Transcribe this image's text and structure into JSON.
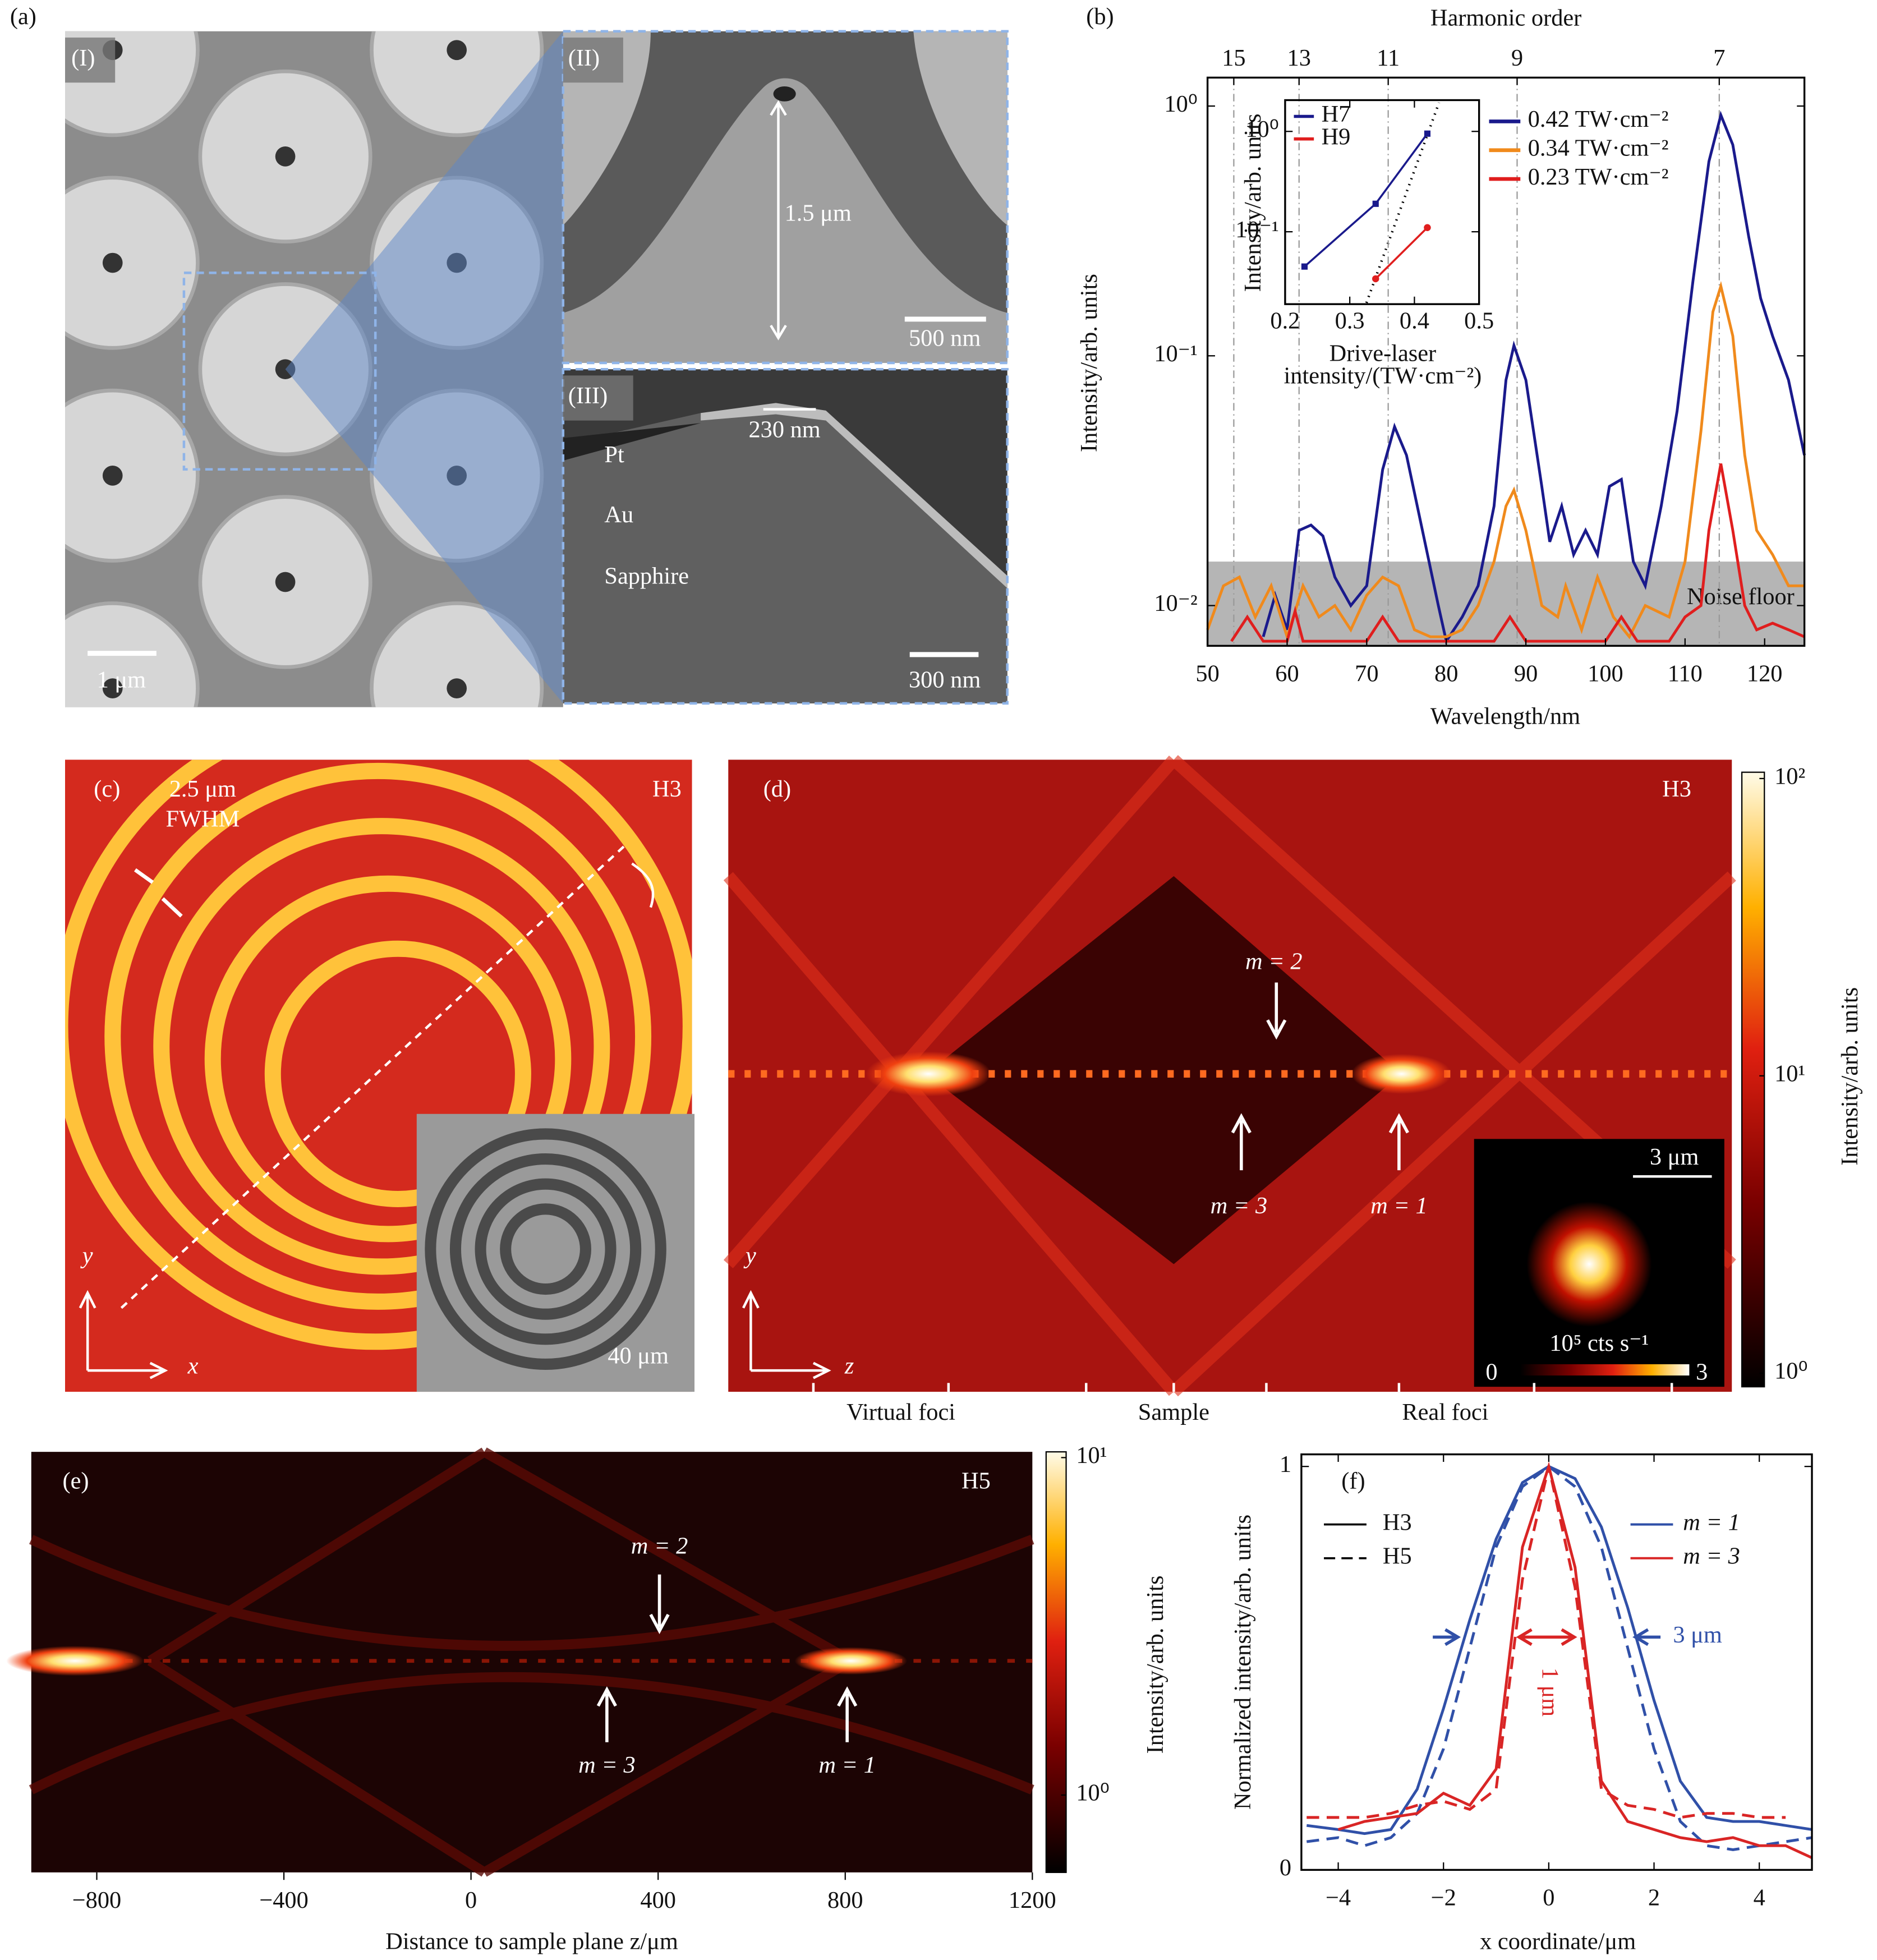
{
  "panels": {
    "a": {
      "label": "(a)",
      "sub1": "(I)",
      "sub2": "(II)",
      "sub3": "(III)",
      "height": "1.5 μm",
      "scale2": "500 nm",
      "tip": "230 nm",
      "pt": "Pt",
      "au": "Au",
      "sapphire": "Sapphire",
      "scale3": "300 nm",
      "scale1": "1 μm"
    },
    "c": {
      "label": "(c)",
      "fwhm_value": "2.5 μm",
      "fwhm": "FWHM",
      "harmonic": "H3",
      "y": "y",
      "x": "x",
      "inset_scale": "40 μm"
    },
    "d": {
      "label": "(d)",
      "harmonic": "H3",
      "m2": "m = 2",
      "m3": "m = 3",
      "m1": "m = 1",
      "y": "y",
      "z": "z",
      "inset_scale": "3 μm",
      "inset_unit": "10⁵ cts s⁻¹",
      "inset_min": "0",
      "inset_max": "3",
      "colorbar": {
        "label": "Intensity/arb. units",
        "ylim": [
          0.9,
          105
        ],
        "yticks": [
          {
            "value": 1,
            "label": "10⁰"
          },
          {
            "value": 10,
            "label": "10¹"
          },
          {
            "value": 100,
            "label": "10²"
          }
        ]
      },
      "bottom": [
        "Virtual foci",
        "Sample",
        "Real foci"
      ]
    }
  },
  "chart_data": [
    {
      "type": "line",
      "panel_label": "(b)",
      "x_label": "Wavelength/nm",
      "y_label": "Intensity/arb. units",
      "xlim": [
        50,
        125
      ],
      "xticks": [
        50,
        60,
        70,
        80,
        90,
        100,
        110,
        120
      ],
      "ylim": [
        0.0069,
        1.3
      ],
      "ylog": true,
      "yticks": [
        {
          "value": 0.01,
          "label": "10⁻²"
        },
        {
          "value": 0.1,
          "label": "10⁻¹"
        },
        {
          "value": 1,
          "label": "10⁰"
        }
      ],
      "top_axis": {
        "label": "Harmonic order",
        "ticks": [
          {
            "value": 53.3,
            "label": "15"
          },
          {
            "value": 61.5,
            "label": "13"
          },
          {
            "value": 72.7,
            "label": "11"
          },
          {
            "value": 88.9,
            "label": "9"
          },
          {
            "value": 114.3,
            "label": "7"
          }
        ]
      },
      "noise_floor": 0.015,
      "noise_label": "Noise floor",
      "series": [
        {
          "name": "0.42 TW·cm⁻²",
          "color": "#1a1a8c",
          "x": [
            57,
            58.5,
            60,
            61.5,
            63,
            64.5,
            66,
            68,
            70,
            72,
            73.5,
            75,
            77,
            79,
            80,
            82,
            84,
            86,
            87.5,
            88.5,
            90,
            92,
            93,
            94.5,
            96,
            97.5,
            99,
            100.5,
            102,
            103.5,
            105,
            107,
            109,
            111,
            113,
            114.5,
            116,
            118,
            119.5,
            121,
            123,
            125
          ],
          "values": [
            0.0075,
            0.011,
            0.008,
            0.02,
            0.021,
            0.019,
            0.013,
            0.01,
            0.012,
            0.035,
            0.052,
            0.04,
            0.02,
            0.01,
            0.0072,
            0.009,
            0.012,
            0.025,
            0.08,
            0.11,
            0.08,
            0.03,
            0.018,
            0.025,
            0.016,
            0.02,
            0.016,
            0.03,
            0.032,
            0.015,
            0.012,
            0.025,
            0.06,
            0.2,
            0.6,
            0.92,
            0.7,
            0.3,
            0.17,
            0.12,
            0.08,
            0.04
          ]
        },
        {
          "name": "0.34 TW·cm⁻²",
          "color": "#f08a1c",
          "x": [
            50,
            52,
            54,
            56,
            58,
            60,
            62,
            64,
            66,
            68,
            70,
            72,
            74,
            76,
            78,
            80,
            82,
            84,
            86,
            87.5,
            88.5,
            90,
            92,
            94,
            95,
            97,
            99,
            101,
            103,
            105,
            108,
            110,
            112,
            113.5,
            114.5,
            116,
            117.5,
            119,
            121,
            123,
            125
          ],
          "values": [
            0.008,
            0.012,
            0.013,
            0.009,
            0.012,
            0.0075,
            0.012,
            0.009,
            0.01,
            0.008,
            0.011,
            0.013,
            0.012,
            0.008,
            0.0075,
            0.0075,
            0.008,
            0.01,
            0.015,
            0.025,
            0.029,
            0.02,
            0.01,
            0.009,
            0.012,
            0.008,
            0.013,
            0.009,
            0.0075,
            0.01,
            0.009,
            0.015,
            0.05,
            0.15,
            0.19,
            0.12,
            0.04,
            0.02,
            0.016,
            0.012,
            0.012
          ]
        },
        {
          "name": "0.23 TW·cm⁻²",
          "color": "#e01e1e",
          "x": [
            53,
            55,
            57,
            60,
            61,
            62,
            66,
            70,
            72,
            74,
            78,
            86,
            88,
            90,
            100,
            102,
            104,
            108,
            110,
            112,
            113,
            114.5,
            116,
            117.5,
            119,
            121,
            123,
            125
          ],
          "values": [
            0.0072,
            0.009,
            0.0072,
            0.0072,
            0.0095,
            0.0072,
            0.0072,
            0.0072,
            0.009,
            0.0072,
            0.0072,
            0.0072,
            0.009,
            0.0072,
            0.0072,
            0.009,
            0.0072,
            0.0072,
            0.009,
            0.01,
            0.02,
            0.037,
            0.02,
            0.01,
            0.008,
            0.0085,
            0.008,
            0.0075
          ]
        }
      ]
    },
    {
      "type": "line",
      "x_label": [
        "Drive-laser",
        "intensity/(TW·cm⁻²)"
      ],
      "y_label": "Intensity/arb. units",
      "xlim": [
        0.2,
        0.5
      ],
      "xticks": [
        0.2,
        0.3,
        0.4,
        0.5
      ],
      "ylim": [
        0.019,
        2.05
      ],
      "ylog": true,
      "yticks": [
        {
          "value": 0.1,
          "label": "10⁻¹"
        },
        {
          "value": 1,
          "label": "10⁰"
        }
      ],
      "series": [
        {
          "name": "H7",
          "color": "#1a1a8c",
          "marker": "square",
          "x": [
            0.23,
            0.34,
            0.42
          ],
          "values": [
            0.045,
            0.19,
            0.95
          ]
        },
        {
          "name": "H9",
          "color": "#e01e1e",
          "marker": "circle",
          "x": [
            0.34,
            0.42
          ],
          "values": [
            0.034,
            0.11
          ]
        }
      ]
    },
    {
      "type": "heatmap",
      "panel_label": "(e)",
      "harmonic": "H5",
      "x_label": "Distance to sample plane z/μm",
      "xlim": [
        -940,
        1200
      ],
      "xticks": [
        {
          "value": -800,
          "label": "−800"
        },
        {
          "value": -400,
          "label": "−400"
        },
        0,
        400,
        800,
        1200
      ],
      "annotations": [
        "m = 2",
        "m = 3",
        "m = 1"
      ],
      "colorbar": {
        "label": "Intensity/arb. units",
        "ylim": [
          0.59,
          10.4
        ],
        "yticks": [
          {
            "value": 1,
            "label": "10⁰"
          },
          {
            "value": 10,
            "label": "10¹"
          }
        ]
      }
    },
    {
      "type": "line",
      "panel_label": "(f)",
      "x_label": "x coordinate/μm",
      "y_label": "Normalized intensity/arb. units",
      "xlim": [
        -4.7,
        5
      ],
      "xticks": [
        {
          "value": -4,
          "label": "−4"
        },
        {
          "value": -2,
          "label": "−2"
        },
        0,
        2,
        4
      ],
      "ylim": [
        0,
        1.03
      ],
      "yticks": [
        0,
        1
      ],
      "x": [
        -4.6,
        -4,
        -3.5,
        -3,
        -2.5,
        -2,
        -1.5,
        -1,
        -0.5,
        0,
        0.5,
        1,
        1.5,
        2,
        2.5,
        3,
        3.5,
        4,
        4.5,
        5
      ],
      "legend_styles": [
        {
          "label": "H3",
          "dash": false
        },
        {
          "label": "H5",
          "dash": true
        }
      ],
      "legend_colors": [
        {
          "label": "m = 1",
          "color": "#3050a8"
        },
        {
          "label": "m = 3",
          "color": "#d92525"
        }
      ],
      "annotations": [
        "3 μm",
        "1 μm"
      ],
      "series": [
        {
          "color": "#3050a8",
          "dash": false,
          "values": [
            0.11,
            0.1,
            0.09,
            0.1,
            0.2,
            0.4,
            0.62,
            0.82,
            0.96,
            1,
            0.97,
            0.85,
            0.65,
            0.42,
            0.22,
            0.13,
            0.12,
            0.12,
            0.11,
            0.1
          ]
        },
        {
          "color": "#3050a8",
          "dash": true,
          "values": [
            0.07,
            0.08,
            0.06,
            0.08,
            0.14,
            0.3,
            0.55,
            0.8,
            0.95,
            1,
            0.95,
            0.8,
            0.55,
            0.3,
            0.12,
            0.06,
            0.05,
            0.06,
            0.07,
            0.08
          ]
        },
        {
          "color": "#d92525",
          "dash": false,
          "values": [
            null,
            0.1,
            0.12,
            0.13,
            0.14,
            0.19,
            0.16,
            0.25,
            0.8,
            1,
            0.75,
            0.22,
            0.12,
            0.1,
            0.08,
            0.07,
            0.08,
            0.06,
            0.06,
            0.03
          ]
        },
        {
          "color": "#d92525",
          "dash": true,
          "values": [
            0.13,
            0.13,
            0.13,
            0.14,
            0.16,
            0.17,
            0.15,
            0.2,
            0.72,
            1,
            0.7,
            0.2,
            0.16,
            0.15,
            0.13,
            0.14,
            0.14,
            0.13,
            0.13,
            null
          ]
        }
      ]
    }
  ]
}
